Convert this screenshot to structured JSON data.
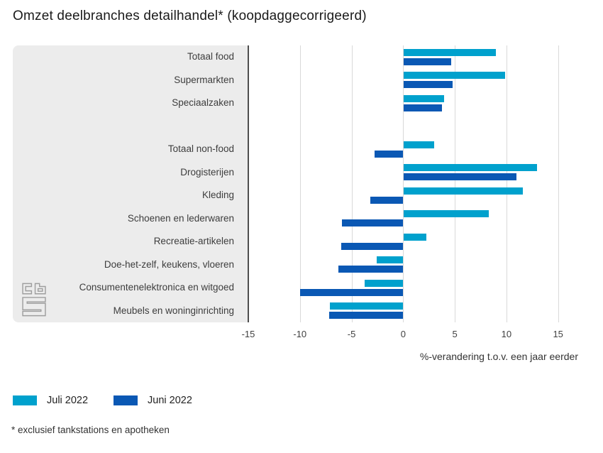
{
  "footnote": "* exclusief tankstations en apotheken",
  "chart_data": {
    "type": "bar",
    "orientation": "horizontal",
    "title": "Omzet deelbranches detailhandel* (koopdaggecorrigeerd)",
    "xlabel": "%-verandering t.o.v. een jaar eerder",
    "categories": [
      "Totaal food",
      "Supermarkten",
      "Speciaalzaken",
      "Totaal non-food",
      "Drogisterijen",
      "Kleding",
      "Schoenen en lederwaren",
      "Recreatie-artikelen",
      "Doe-het-zelf, keukens, vloeren",
      "Consumentenelektronica en witgoed",
      "Meubels en woninginrichting"
    ],
    "group_break_after_index": 2,
    "series": [
      {
        "name": "Juli 2022",
        "color": "#00a1cd",
        "values": [
          8.9,
          9.8,
          3.9,
          2.9,
          12.9,
          11.5,
          8.2,
          2.2,
          -2.6,
          -3.7,
          -7.1
        ]
      },
      {
        "name": "Juni 2022",
        "color": "#0a58b4",
        "values": [
          4.6,
          4.7,
          3.7,
          -2.8,
          10.9,
          -3.2,
          -5.9,
          -6.0,
          -6.3,
          -10.0,
          -7.2
        ]
      }
    ],
    "ticks": [
      -15,
      -10,
      -5,
      0,
      5,
      10,
      15
    ],
    "xlim": [
      -15,
      19
    ],
    "grid": true,
    "legend_position": "bottom-left",
    "panel_bg": "#ececec",
    "axis_line_color": "#4d4d4d",
    "gridline_color": "#d9d9d9"
  }
}
